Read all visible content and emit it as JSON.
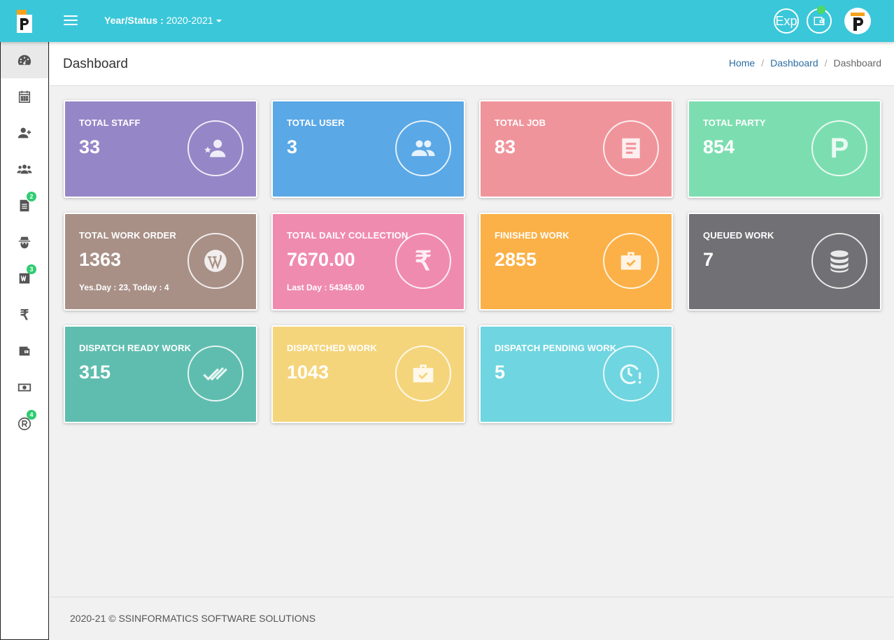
{
  "topbar": {
    "year_status_label": "Year/Status : ",
    "year_status_value": "2020-2021",
    "exp_label": "Exp",
    "logo_text": ""
  },
  "sidebar": {
    "items": [
      {
        "icon": "dashboard-icon",
        "badge": ""
      },
      {
        "icon": "calendar-icon",
        "badge": ""
      },
      {
        "icon": "add-user-icon",
        "badge": ""
      },
      {
        "icon": "users-icon",
        "badge": ""
      },
      {
        "icon": "document-icon",
        "badge": "2"
      },
      {
        "icon": "spy-icon",
        "badge": ""
      },
      {
        "icon": "word-icon",
        "badge": "3"
      },
      {
        "icon": "rupee-icon",
        "badge": ""
      },
      {
        "icon": "wallet-icon",
        "badge": ""
      },
      {
        "icon": "money-icon",
        "badge": ""
      },
      {
        "icon": "registered-icon",
        "badge": "4"
      }
    ],
    "rupee_glyph": "₹"
  },
  "header": {
    "title": "Dashboard",
    "breadcrumb": [
      "Home",
      "Dashboard",
      "Dashboard"
    ]
  },
  "cards": [
    {
      "label": "TOTAL STAFF",
      "value": "33",
      "sub": "",
      "color": "#9586c7",
      "icon": "staff-icon"
    },
    {
      "label": "TOTAL USER",
      "value": "3",
      "sub": "",
      "color": "#5aa8e6",
      "icon": "users-icon"
    },
    {
      "label": "TOTAL JOB",
      "value": "83",
      "sub": "",
      "color": "#f0949b",
      "icon": "document-icon"
    },
    {
      "label": "TOTAL PARTY",
      "value": "854",
      "sub": "",
      "color": "#7cdeb0",
      "icon": "party-p-icon",
      "glyph": "P"
    },
    {
      "label": "TOTAL WORK ORDER",
      "value": "1363",
      "sub": "Yes.Day : 23, Today : 4",
      "color": "#a89087",
      "icon": "wordpress-icon"
    },
    {
      "label": "TOTAL DAILY COLLECTION",
      "value": "7670.00",
      "sub": "Last Day : 54345.00",
      "color": "#f08bb0",
      "icon": "rupee-icon",
      "glyph": "₹"
    },
    {
      "label": "FINISHED WORK",
      "value": "2855",
      "sub": "",
      "color": "#fbb147",
      "icon": "briefcase-check-icon"
    },
    {
      "label": "QUEUED WORK",
      "value": "7",
      "sub": "",
      "color": "#717175",
      "icon": "database-icon"
    },
    {
      "label": "DISPATCH READY WORK",
      "value": "315",
      "sub": "",
      "color": "#5fbdaf",
      "icon": "double-check-icon"
    },
    {
      "label": "DISPATCHED WORK",
      "value": "1043",
      "sub": "",
      "color": "#f5d57c",
      "icon": "briefcase-check-icon"
    },
    {
      "label": "DISPATCH PENDING WORK",
      "value": "5",
      "sub": "",
      "color": "#6fd5e0",
      "icon": "clock-alert-icon"
    }
  ],
  "footer": {
    "text": "2020-21 © SSINFORMATICS SOFTWARE SOLUTIONS"
  }
}
